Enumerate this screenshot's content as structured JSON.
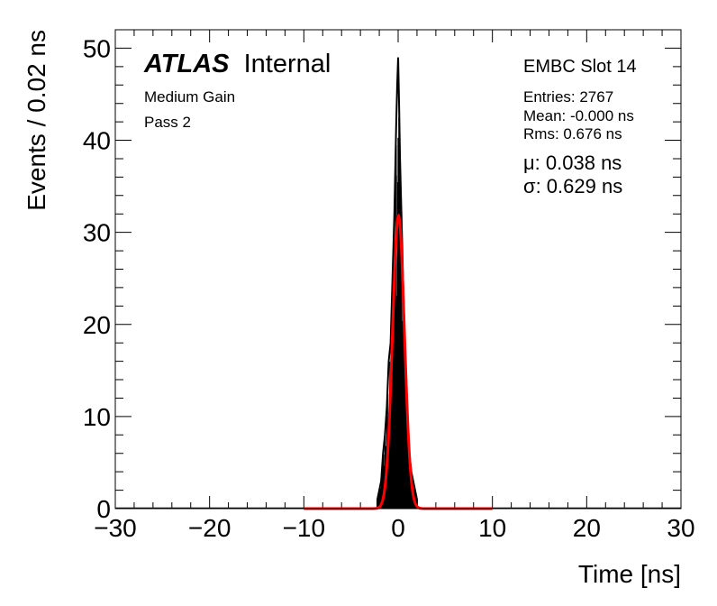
{
  "chart_data": {
    "type": "histogram",
    "xlabel": "Time [ns]",
    "ylabel": "Events / 0.02 ns",
    "xlim": [
      -30,
      30
    ],
    "ylim": [
      0,
      52
    ],
    "x_ticks": [
      -30,
      -20,
      -10,
      0,
      10,
      20,
      30
    ],
    "y_ticks": [
      0,
      10,
      20,
      30,
      40,
      50
    ],
    "x_tick_labels": [
      "−30",
      "−20",
      "−10",
      "0",
      "10",
      "20",
      "30"
    ],
    "y_tick_labels": [
      "0",
      "10",
      "20",
      "30",
      "40",
      "50"
    ],
    "bin_width": 0.02,
    "histogram_color": "#000000",
    "fit_color": "#ff0000",
    "fit": {
      "function": "gaussian",
      "mean": 0.038,
      "sigma": 0.629,
      "peak": 31.8,
      "range": [
        -10,
        10
      ]
    },
    "histogram_envelope": {
      "x": [
        -2.2,
        -2.0,
        -1.8,
        -1.6,
        -1.4,
        -1.2,
        -1.0,
        -0.8,
        -0.6,
        -0.4,
        -0.2,
        -0.1,
        0.0,
        0.1,
        0.2,
        0.4,
        0.6,
        0.8,
        1.0,
        1.2,
        1.4,
        1.6,
        1.8,
        2.0
      ],
      "y": [
        1,
        2,
        3,
        6,
        8,
        11,
        16,
        18,
        25,
        32,
        42,
        46,
        49,
        44,
        38,
        30,
        22,
        15,
        10,
        6,
        4,
        3,
        2,
        1
      ]
    }
  },
  "annotations": {
    "atlas": "ATLAS",
    "internal": "Internal",
    "gain": "Medium Gain",
    "pass": "Pass 2",
    "slot": "EMBC Slot 14",
    "entries": "Entries: 2767",
    "mean": "Mean: -0.000 ns",
    "rms": "Rms: 0.676 ns",
    "mu": "μ: 0.038 ns",
    "sigma": "σ: 0.629 ns"
  }
}
